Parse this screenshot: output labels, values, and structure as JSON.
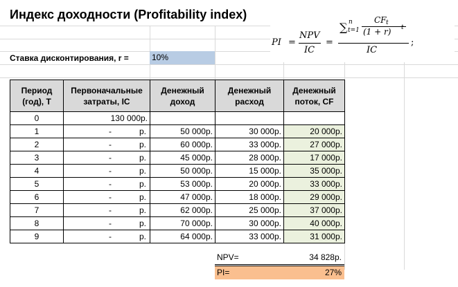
{
  "title": "Индекс доходности (Profitability index)",
  "rate": {
    "label": "Ставка дисконтирования, r =",
    "value": "10%"
  },
  "table": {
    "headers": [
      "Период (год), T",
      "Первоначальные затраты, IC",
      "Денежный доход",
      "Денежный расход",
      "Денежный поток, CF"
    ],
    "rows": [
      {
        "t": "0",
        "ic": "130 000р.",
        "inc": "",
        "exp": "",
        "cf": ""
      },
      {
        "t": "1",
        "ic": "-",
        "inc": "50 000р.",
        "exp": "30 000р.",
        "cf": "20 000р."
      },
      {
        "t": "2",
        "ic": "-",
        "inc": "60 000р.",
        "exp": "33 000р.",
        "cf": "27 000р."
      },
      {
        "t": "3",
        "ic": "-",
        "inc": "45 000р.",
        "exp": "28 000р.",
        "cf": "17 000р."
      },
      {
        "t": "4",
        "ic": "-",
        "inc": "50 000р.",
        "exp": "15 000р.",
        "cf": "35 000р."
      },
      {
        "t": "5",
        "ic": "-",
        "inc": "53 000р.",
        "exp": "20 000р.",
        "cf": "33 000р."
      },
      {
        "t": "6",
        "ic": "-",
        "inc": "47 000р.",
        "exp": "18 000р.",
        "cf": "29 000р."
      },
      {
        "t": "7",
        "ic": "-",
        "inc": "62 000р.",
        "exp": "25 000р.",
        "cf": "37 000р."
      },
      {
        "t": "8",
        "ic": "-",
        "inc": "70 000р.",
        "exp": "30 000р.",
        "cf": "40 000р."
      },
      {
        "t": "9",
        "ic": "-",
        "inc": "64 000р.",
        "exp": "33 000р.",
        "cf": "31 000р."
      }
    ],
    "dash_currency": "р."
  },
  "npv": {
    "label": "NPV=",
    "value": "34 828р."
  },
  "pi": {
    "label": "PI=",
    "value": "27%"
  },
  "formula": {
    "pi": "PI",
    "eq1": "=",
    "npv": "NPV",
    "ic": "IC",
    "eq2": "=",
    "sum": "∑",
    "sum_sup": "n",
    "sum_sub": "t=1",
    "cf": "CF",
    "cf_sub": "t",
    "den": "(1 + r)",
    "den_sup": "t",
    "ic2": "IC",
    "semicolon": ";"
  },
  "colors": {
    "header_bg": "#d9d9d9",
    "rate_bg": "#b8cce4",
    "cf_bg": "#ebf1de",
    "pi_bg": "#fabf8f"
  }
}
